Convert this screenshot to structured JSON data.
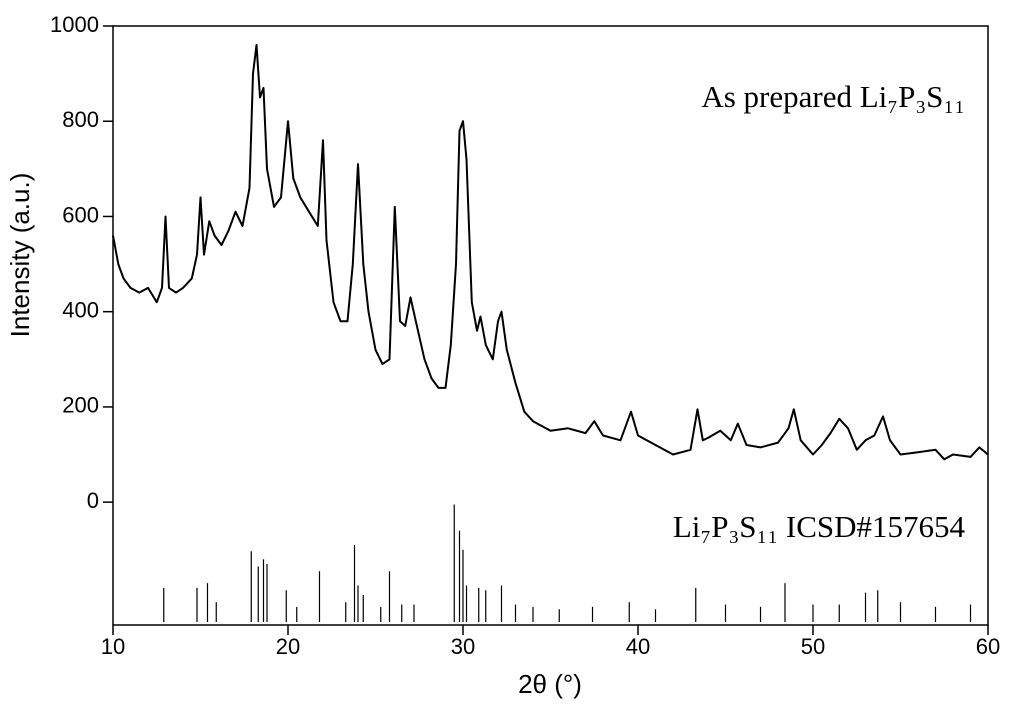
{
  "chart_data": {
    "type": "line",
    "xlabel": "2θ (°)",
    "ylabel": "Intensity (a.u.)",
    "annotations": [
      "As prepared Li₇P₃S₁₁",
      "Li₇P₃S₁₁  ICSD#157654"
    ],
    "color": "#000000",
    "x": [
      10.0,
      10.3,
      10.6,
      11,
      11.5,
      12,
      12.5,
      12.8,
      13.0,
      13.2,
      13.6,
      14,
      14.5,
      14.8,
      15.0,
      15.2,
      15.5,
      15.8,
      16.2,
      16.6,
      17.0,
      17.4,
      17.8,
      18.0,
      18.2,
      18.4,
      18.6,
      18.8,
      19.2,
      19.6,
      20.0,
      20.3,
      20.7,
      21.2,
      21.7,
      22.0,
      22.2,
      22.6,
      23.0,
      23.4,
      23.7,
      24.0,
      24.3,
      24.6,
      25.0,
      25.4,
      25.8,
      26.1,
      26.4,
      26.7,
      27.0,
      27.3,
      27.8,
      28.2,
      28.6,
      29.0,
      29.3,
      29.6,
      29.8,
      30.0,
      30.2,
      30.5,
      30.8,
      31.0,
      31.3,
      31.7,
      32.0,
      32.2,
      32.5,
      33.0,
      33.5,
      34,
      35,
      36,
      37,
      37.5,
      38,
      39,
      39.6,
      40,
      41,
      42,
      42.5,
      43,
      43.4,
      43.7,
      44,
      44.7,
      45.3,
      45.7,
      46.2,
      47,
      48,
      48.6,
      48.9,
      49.3,
      50,
      50.5,
      51,
      51.5,
      52,
      52.5,
      53,
      53.5,
      54,
      54.4,
      55,
      56,
      57,
      57.5,
      58,
      59,
      59.5,
      60
    ],
    "values": [
      560,
      500,
      470,
      450,
      440,
      450,
      420,
      450,
      600,
      450,
      440,
      450,
      470,
      520,
      640,
      520,
      590,
      560,
      540,
      570,
      610,
      580,
      660,
      900,
      960,
      850,
      870,
      700,
      620,
      640,
      800,
      680,
      640,
      610,
      580,
      760,
      550,
      420,
      380,
      380,
      500,
      710,
      500,
      400,
      320,
      290,
      300,
      620,
      380,
      370,
      430,
      380,
      300,
      260,
      240,
      240,
      330,
      500,
      780,
      800,
      720,
      420,
      360,
      390,
      330,
      300,
      380,
      400,
      320,
      250,
      190,
      170,
      150,
      155,
      145,
      170,
      140,
      130,
      190,
      140,
      120,
      100,
      105,
      110,
      195,
      130,
      135,
      150,
      130,
      165,
      120,
      115,
      125,
      155,
      195,
      130,
      100,
      120,
      145,
      175,
      155,
      110,
      130,
      140,
      180,
      130,
      100,
      105,
      110,
      90,
      100,
      95,
      115,
      100
    ],
    "reference": {
      "x": [
        12.9,
        14.8,
        15.4,
        15.9,
        17.9,
        18.3,
        18.6,
        18.8,
        19.9,
        20.5,
        21.8,
        23.3,
        23.8,
        24.0,
        24.3,
        25.3,
        25.8,
        26.5,
        27.2,
        29.5,
        29.8,
        30.0,
        30.2,
        30.9,
        31.3,
        32.2,
        33,
        34,
        35.5,
        37.4,
        39.5,
        41,
        43.3,
        45,
        47,
        48.4,
        50,
        51.5,
        53,
        53.7,
        55,
        57,
        59
      ],
      "values": [
        -180,
        -180,
        -170,
        -210,
        -103,
        -135,
        -120,
        -130,
        -185,
        -220,
        -145,
        -210,
        -90,
        -175,
        -195,
        -220,
        -145,
        -215,
        -215,
        -5,
        -60,
        -100,
        -175,
        -180,
        -185,
        -175,
        -215,
        -220,
        -225,
        -220,
        -210,
        -225,
        -180,
        -215,
        -220,
        -170,
        -215,
        -215,
        -190,
        -185,
        -210,
        -220,
        -215
      ]
    },
    "xlim": [
      10,
      60
    ],
    "xticks": [
      10,
      20,
      30,
      40,
      50,
      60
    ],
    "ylim": [
      -258,
      1000
    ],
    "yticks": [
      0,
      200,
      400,
      600,
      800,
      1000
    ]
  }
}
